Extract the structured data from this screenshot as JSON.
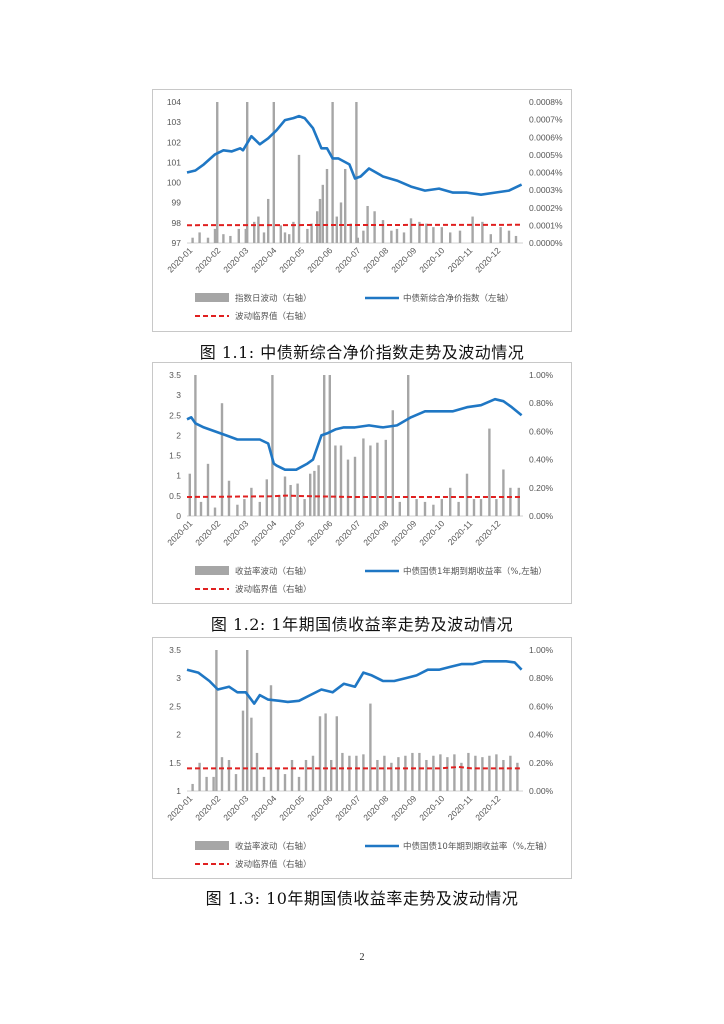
{
  "chart_data": [
    {
      "type": "line",
      "caption": "图 1.1: 中债新综合净价指数走势及波动情况",
      "categories": [
        "2020-01",
        "2020-02",
        "2020-03",
        "2020-04",
        "2020-05",
        "2020-06",
        "2020-07",
        "2020-08",
        "2020-09",
        "2020-10",
        "2020-11",
        "2020-12"
      ],
      "left_axis": {
        "ylim": [
          97,
          104
        ],
        "ticks": [
          "97",
          "98",
          "99",
          "100",
          "101",
          "102",
          "103",
          "104"
        ]
      },
      "right_axis": {
        "ylim": [
          0,
          0.0008
        ],
        "ticks": [
          "0.0000%",
          "0.0001%",
          "0.0002%",
          "0.0003%",
          "0.0004%",
          "0.0005%",
          "0.0006%",
          "0.0007%",
          "0.0008%"
        ]
      },
      "legend": [
        "指数日波动（右轴）",
        "中债新综合净价指数（左轴）",
        "波动临界值（右轴）"
      ],
      "series": [
        {
          "name": "中债新综合净价指数（左轴）",
          "axis": "left",
          "color": "#1f77c4",
          "x": [
            0,
            0.3,
            0.6,
            1,
            1.3,
            1.6,
            1.9,
            2,
            2.3,
            2.6,
            2.9,
            3.2,
            3.5,
            3.8,
            4,
            4.2,
            4.5,
            4.8,
            5,
            5.2,
            5.4,
            5.8,
            6,
            6.2,
            6.5,
            7,
            7.5,
            8,
            8.5,
            9,
            9.5,
            10,
            10.5,
            11,
            11.5,
            11.95
          ],
          "y": [
            100.5,
            100.6,
            100.9,
            101.4,
            101.6,
            101.55,
            101.7,
            101.6,
            102.3,
            101.9,
            102.2,
            102.6,
            103.1,
            103.2,
            103.3,
            103.2,
            102.7,
            101.7,
            101.7,
            101.2,
            101.2,
            100.9,
            100.2,
            100.3,
            100.7,
            100.3,
            100.1,
            99.8,
            99.6,
            99.7,
            99.5,
            99.5,
            99.4,
            99.5,
            99.6,
            99.9
          ]
        },
        {
          "name": "波动临界值（右轴）",
          "axis": "right",
          "color": "#e02020",
          "dashed": true,
          "x": [
            0,
            11.95
          ],
          "y": [
            0.000101,
            0.000103
          ]
        },
        {
          "name": "指数日波动（右轴）",
          "axis": "right",
          "color": "#a6a6a6",
          "type": "bar",
          "x": [
            0.2,
            0.45,
            0.75,
            1,
            1.08,
            1.3,
            1.55,
            1.85,
            2.1,
            2.15,
            2.4,
            2.55,
            2.75,
            2.9,
            3.1,
            3.35,
            3.5,
            3.65,
            3.8,
            4,
            4.3,
            4.45,
            4.65,
            4.75,
            4.85,
            5,
            5.2,
            5.35,
            5.5,
            5.65,
            5.85,
            6.05,
            6.1,
            6.3,
            6.45,
            6.7,
            7,
            7.3,
            7.5,
            7.75,
            8,
            8.3,
            8.55,
            8.8,
            9.1,
            9.4,
            9.75,
            10.2,
            10.55,
            10.85,
            11.2,
            11.5,
            11.75
          ],
          "y": [
            3e-05,
            6e-05,
            3e-05,
            8e-05,
            0.0008,
            5e-05,
            4e-05,
            8e-05,
            8e-05,
            0.0008,
            0.00012,
            0.00015,
            6e-05,
            0.00025,
            0.0008,
            0.0001,
            6e-05,
            5e-05,
            0.00012,
            0.0005,
            8e-05,
            0.00011,
            0.00018,
            0.00025,
            0.00033,
            0.00042,
            0.0008,
            0.00015,
            0.00023,
            0.00042,
            0.00011,
            0.0008,
            3e-05,
            7e-05,
            0.00021,
            0.00018,
            0.00013,
            7e-05,
            8e-05,
            6e-05,
            0.00014,
            0.00012,
            0.00011,
            9e-05,
            9e-05,
            6e-05,
            7e-05,
            0.00015,
            0.00012,
            5e-05,
            9e-05,
            7e-05,
            4e-05
          ]
        }
      ]
    },
    {
      "type": "line",
      "caption": "图 1.2: 1年期国债收益率走势及波动情况",
      "categories": [
        "2020-01",
        "2020-02",
        "2020-03",
        "2020-04",
        "2020-05",
        "2020-06",
        "2020-07",
        "2020-08",
        "2020-09",
        "2020-10",
        "2020-11",
        "2020-12"
      ],
      "left_axis": {
        "ylim": [
          0,
          3.5
        ],
        "ticks": [
          "0",
          "0.5",
          "1",
          "1.5",
          "2",
          "2.5",
          "3",
          "3.5"
        ]
      },
      "right_axis": {
        "ylim": [
          0,
          1.0
        ],
        "ticks": [
          "0.00%",
          "0.20%",
          "0.40%",
          "0.60%",
          "0.80%",
          "1.00%"
        ]
      },
      "legend": [
        "收益率波动（右轴）",
        "中债国债1年期到期收益率（%,左轴）",
        "波动临界值（右轴）"
      ],
      "series": [
        {
          "name": "中债国债1年期到期收益率（%,左轴）",
          "axis": "left",
          "color": "#1f77c4",
          "x": [
            0,
            0.15,
            0.3,
            0.6,
            1,
            1.4,
            1.8,
            2.2,
            2.6,
            2.9,
            3.1,
            3.2,
            3.5,
            3.9,
            4.3,
            4.5,
            4.8,
            5.0,
            5.3,
            5.6,
            6.0,
            6.5,
            7.0,
            7.5,
            8.0,
            8.5,
            9,
            9.5,
            10,
            10.5,
            11,
            11.3,
            11.6,
            11.95
          ],
          "y": [
            2.4,
            2.45,
            2.3,
            2.2,
            2.1,
            2.0,
            1.9,
            1.9,
            1.9,
            1.8,
            1.3,
            1.25,
            1.15,
            1.15,
            1.3,
            1.4,
            2.0,
            2.05,
            2.15,
            2.2,
            2.2,
            2.25,
            2.2,
            2.25,
            2.45,
            2.6,
            2.6,
            2.6,
            2.7,
            2.75,
            2.9,
            2.85,
            2.7,
            2.5
          ]
        },
        {
          "name": "波动临界值（右轴）",
          "axis": "right",
          "color": "#e02020",
          "dashed": true,
          "x": [
            0,
            3.0,
            3.5,
            4.5,
            6,
            8,
            11.95
          ],
          "y": [
            0.135,
            0.14,
            0.145,
            0.14,
            0.135,
            0.135,
            0.135
          ]
        },
        {
          "name": "收益率波动（右轴）",
          "axis": "right",
          "color": "#a6a6a6",
          "type": "bar",
          "x": [
            0.1,
            0.3,
            0.5,
            0.75,
            1,
            1.25,
            1.5,
            1.8,
            2.05,
            2.3,
            2.6,
            2.85,
            3.05,
            3.3,
            3.5,
            3.7,
            3.95,
            4.2,
            4.4,
            4.55,
            4.7,
            4.9,
            5.1,
            5.3,
            5.5,
            5.75,
            6,
            6.3,
            6.55,
            6.8,
            7.1,
            7.35,
            7.6,
            7.9,
            8.2,
            8.5,
            8.8,
            9.1,
            9.4,
            9.7,
            10,
            10.25,
            10.5,
            10.8,
            11.05,
            11.3,
            11.55,
            11.85
          ],
          "y": [
            0.3,
            1.0,
            0.1,
            0.37,
            0.06,
            0.8,
            0.25,
            0.08,
            0.12,
            0.2,
            0.1,
            0.26,
            1.0,
            0.15,
            0.28,
            0.22,
            0.23,
            0.12,
            0.3,
            0.32,
            0.36,
            1.0,
            1.0,
            0.5,
            0.5,
            0.4,
            0.42,
            0.55,
            0.5,
            0.52,
            0.54,
            0.75,
            0.1,
            1.0,
            0.12,
            0.1,
            0.08,
            0.12,
            0.2,
            0.1,
            0.3,
            0.12,
            0.12,
            0.62,
            0.12,
            0.33,
            0.2,
            0.2
          ]
        }
      ]
    },
    {
      "type": "line",
      "caption": "图 1.3: 10年期国债收益率走势及波动情况",
      "categories": [
        "2020-01",
        "2020-02",
        "2020-03",
        "2020-04",
        "2020-05",
        "2020-06",
        "2020-07",
        "2020-08",
        "2020-09",
        "2020-10",
        "2020-11",
        "2020-12"
      ],
      "left_axis": {
        "ylim": [
          1,
          3.5
        ],
        "ticks": [
          "1",
          "1.5",
          "2",
          "2.5",
          "3",
          "3.5"
        ]
      },
      "right_axis": {
        "ylim": [
          0,
          1.0
        ],
        "ticks": [
          "0.00%",
          "0.20%",
          "0.40%",
          "0.60%",
          "0.80%",
          "1.00%"
        ]
      },
      "legend": [
        "收益率波动（右轴）",
        "中债国债10年期到期收益率（%,左轴）",
        "波动临界值（右轴）"
      ],
      "series": [
        {
          "name": "中债国债10年期到期收益率（%,左轴）",
          "axis": "left",
          "color": "#1f77c4",
          "x": [
            0,
            0.4,
            0.8,
            1.1,
            1.5,
            1.8,
            2.1,
            2.4,
            2.6,
            2.9,
            3.3,
            3.6,
            4.0,
            4.4,
            4.8,
            5.2,
            5.6,
            6.0,
            6.3,
            6.6,
            7.0,
            7.4,
            7.8,
            8.2,
            8.6,
            9.0,
            9.4,
            9.8,
            10.2,
            10.6,
            11.0,
            11.4,
            11.7,
            11.95
          ],
          "y": [
            3.15,
            3.1,
            2.95,
            2.8,
            2.85,
            2.75,
            2.75,
            2.55,
            2.7,
            2.62,
            2.6,
            2.58,
            2.6,
            2.7,
            2.8,
            2.75,
            2.9,
            2.85,
            3.1,
            3.05,
            2.95,
            2.95,
            3.0,
            3.05,
            3.15,
            3.15,
            3.2,
            3.25,
            3.25,
            3.3,
            3.3,
            3.3,
            3.28,
            3.15
          ]
        },
        {
          "name": "波动临界值（右轴）",
          "axis": "right",
          "color": "#e02020",
          "dashed": true,
          "x": [
            0,
            2.3,
            9.0,
            9.7,
            10.2,
            11.95
          ],
          "y": [
            0.16,
            0.16,
            0.16,
            0.17,
            0.16,
            0.16
          ]
        },
        {
          "name": "收益率波动（右轴）",
          "axis": "right",
          "color": "#a6a6a6",
          "type": "bar",
          "x": [
            0.2,
            0.45,
            0.7,
            0.95,
            1.05,
            1.25,
            1.5,
            1.75,
            2.0,
            2.15,
            2.3,
            2.5,
            2.75,
            3.0,
            3.25,
            3.5,
            3.75,
            4.0,
            4.25,
            4.5,
            4.75,
            4.95,
            5.15,
            5.35,
            5.55,
            5.8,
            6.05,
            6.3,
            6.55,
            6.8,
            7.05,
            7.3,
            7.55,
            7.8,
            8.05,
            8.3,
            8.55,
            8.8,
            9.05,
            9.3,
            9.55,
            9.8,
            10.05,
            10.3,
            10.55,
            10.8,
            11.05,
            11.3,
            11.55,
            11.8
          ],
          "y": [
            0.05,
            0.2,
            0.1,
            0.1,
            1.0,
            0.24,
            0.22,
            0.12,
            0.57,
            1.0,
            0.52,
            0.27,
            0.1,
            0.75,
            0.16,
            0.12,
            0.22,
            0.1,
            0.22,
            0.25,
            0.53,
            0.55,
            0.22,
            0.53,
            0.27,
            0.25,
            0.25,
            0.26,
            0.62,
            0.22,
            0.25,
            0.2,
            0.24,
            0.25,
            0.27,
            0.27,
            0.22,
            0.25,
            0.26,
            0.24,
            0.26,
            0.2,
            0.27,
            0.25,
            0.24,
            0.25,
            0.26,
            0.22,
            0.25,
            0.2
          ]
        }
      ]
    }
  ],
  "page_number": "2"
}
